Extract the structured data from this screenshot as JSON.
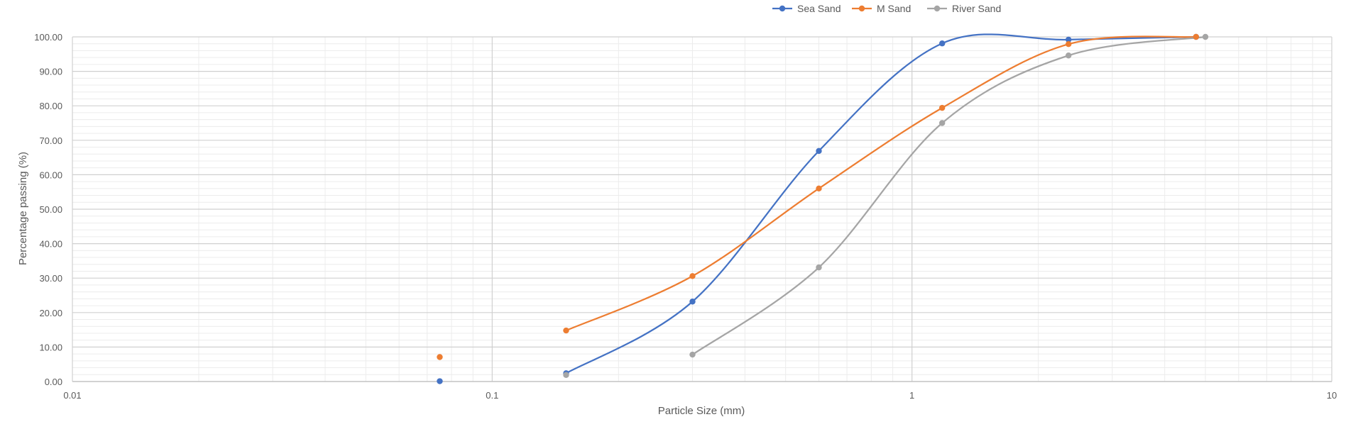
{
  "chart_data": {
    "type": "line",
    "xscale": "log",
    "xlabel": "Particle Size (mm)",
    "ylabel": "Percentage passing (%)",
    "xlim": [
      0.01,
      10
    ],
    "ylim": [
      0,
      100
    ],
    "x_ticks": [
      "0.01",
      "0.1",
      "1",
      "10"
    ],
    "y_ticks": [
      "0.00",
      "10.00",
      "20.00",
      "30.00",
      "40.00",
      "50.00",
      "60.00",
      "70.00",
      "80.00",
      "90.00",
      "100.00"
    ],
    "legend_position": "top",
    "grid": true,
    "smooth": true,
    "series": [
      {
        "name": "Sea Sand",
        "color": "#4472C4",
        "x": [
          0.075,
          0.15,
          0.3,
          0.6,
          1.18,
          2.36,
          4.75
        ],
        "y": [
          0.1,
          2.4,
          23.2,
          66.9,
          98.1,
          99.2,
          100.0
        ],
        "smoothed_from_index": 1
      },
      {
        "name": "M Sand",
        "color": "#ED7D31",
        "x": [
          0.075,
          0.15,
          0.3,
          0.6,
          1.18,
          2.36,
          4.75
        ],
        "y": [
          7.1,
          14.8,
          30.6,
          56.0,
          79.4,
          97.9,
          100.0
        ],
        "smoothed_from_index": 1
      },
      {
        "name": "River Sand",
        "color": "#A5A5A5",
        "x": [
          0.15,
          0.3,
          0.6,
          1.18,
          2.36,
          5.0
        ],
        "y": [
          1.9,
          7.8,
          33.1,
          75.0,
          94.6,
          100.0
        ],
        "smoothed_from_index": 1
      }
    ]
  }
}
